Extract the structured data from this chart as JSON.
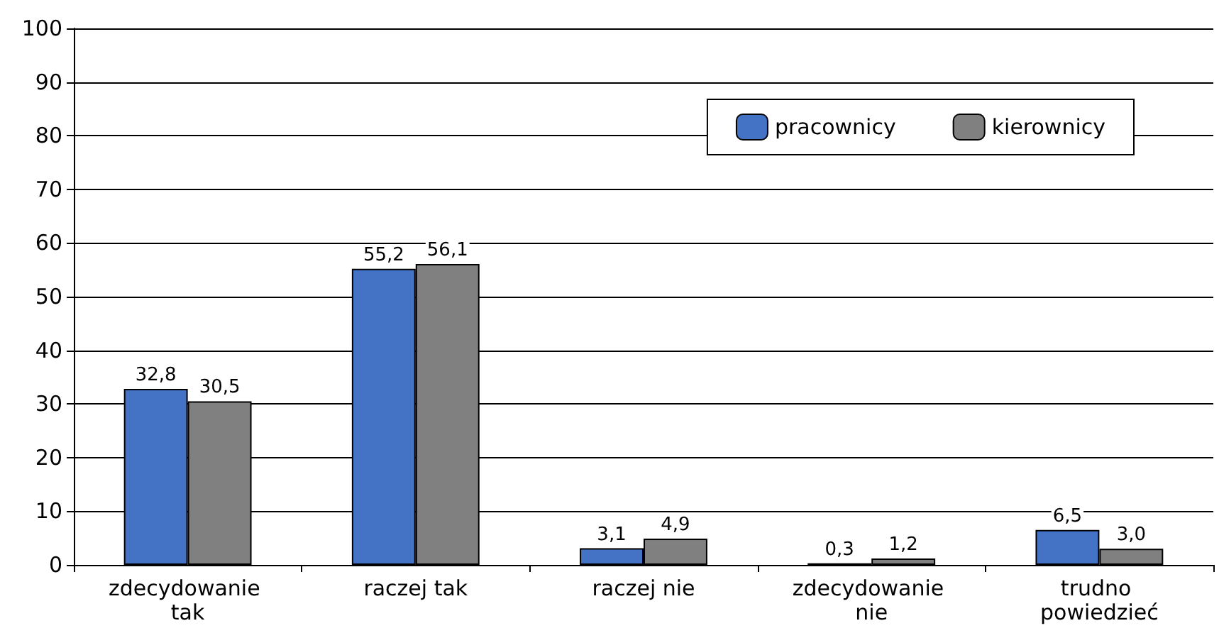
{
  "chart_data": {
    "type": "bar",
    "categories": [
      "zdecydowanie tak",
      "raczej tak",
      "raczej nie",
      "zdecydowanie nie",
      "trudno powiedzieć"
    ],
    "series": [
      {
        "name": "pracownicy",
        "color": "#4472c4",
        "values": [
          32.8,
          55.2,
          3.1,
          0.3,
          6.5
        ],
        "value_labels": [
          "32,8",
          "55,2",
          "3,1",
          "0,3",
          "6,5"
        ]
      },
      {
        "name": "kierownicy",
        "color": "#808080",
        "values": [
          30.5,
          56.1,
          4.9,
          1.2,
          3.0
        ],
        "value_labels": [
          "30,5",
          "56,1",
          "4,9",
          "1,2",
          "3,0"
        ]
      }
    ],
    "ylim": [
      0,
      100
    ],
    "yticks": [
      0,
      10,
      20,
      30,
      40,
      50,
      60,
      70,
      80,
      90,
      100
    ],
    "grid": "y",
    "legend": "top right"
  }
}
